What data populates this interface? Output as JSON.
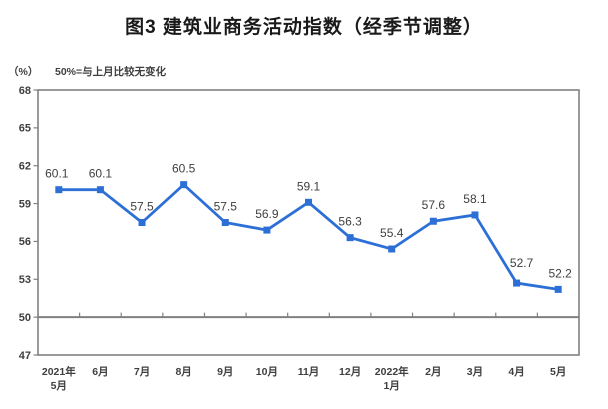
{
  "title": "图3  建筑业商务活动指数（经季节调整）",
  "unit_label": "（%）",
  "note": "50%=与上月比较无变化",
  "chart_data": {
    "type": "line",
    "title": "图3  建筑业商务活动指数（经季节调整）",
    "ylabel": "（%）",
    "annotation": "50%=与上月比较无变化",
    "categories": [
      "2021年\n5月",
      "6月",
      "7月",
      "8月",
      "9月",
      "10月",
      "11月",
      "12月",
      "2022年\n1月",
      "2月",
      "3月",
      "4月",
      "5月"
    ],
    "values": [
      60.1,
      60.1,
      57.5,
      60.5,
      57.5,
      56.9,
      59.1,
      56.3,
      55.4,
      57.6,
      58.1,
      52.7,
      52.2
    ],
    "ylim": [
      47,
      68
    ],
    "ytick_step": 3,
    "yticks": [
      47,
      50,
      53,
      56,
      59,
      62,
      65,
      68
    ],
    "baseline": 50,
    "grid": false,
    "legend": "none",
    "line_color": "#2c6fd6",
    "axis_color": "#808080",
    "text_color": "#3f3f3f",
    "label_offsets": {
      "0": [
        -2,
        0
      ],
      "11": [
        5,
        -4
      ],
      "12": [
        2,
        0
      ]
    }
  }
}
